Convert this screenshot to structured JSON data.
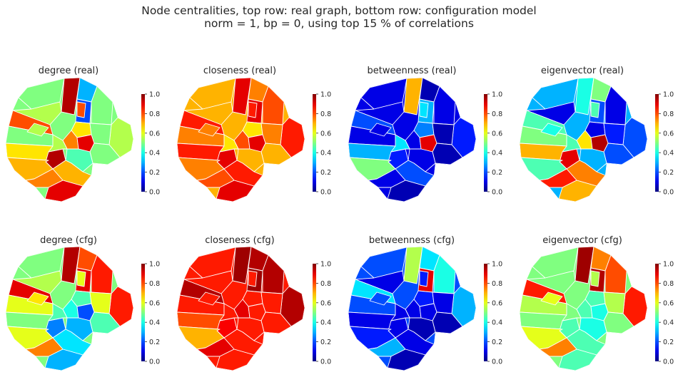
{
  "figure": {
    "title_line1": "Node centralities,   top row: real graph,   bottom row: configuration model",
    "title_line2": "norm = 1,   bp = 0,   using top 15 % of correlations"
  },
  "colors": {
    "background": "#ffffff",
    "text": "#262626",
    "region_border": "#ffffff",
    "colormap": "jet"
  },
  "chart_data": [
    {
      "type": "heatmap",
      "row": "real",
      "title": "degree (real)",
      "measure": "degree",
      "colorbar": {
        "range": [
          0,
          1
        ],
        "ticks": [
          "0.0",
          "0.2",
          "0.4",
          "0.6",
          "0.8",
          "1.0"
        ]
      },
      "region_values": [
        0.5,
        0.95,
        0.3,
        0.2,
        0.5,
        0.55,
        0.55,
        0.8,
        0.65,
        0.5,
        0.5,
        0.65,
        0.75,
        0.9,
        0.5,
        0.95,
        0.7,
        0.55,
        0.45,
        0.7,
        0.75,
        0.9,
        0.55,
        0.8
      ]
    },
    {
      "type": "heatmap",
      "row": "real",
      "title": "closeness (real)",
      "measure": "closeness",
      "colorbar": {
        "range": [
          0,
          1
        ],
        "ticks": [
          "0.0",
          "0.2",
          "0.4",
          "0.6",
          "0.8",
          "1.0"
        ]
      },
      "region_values": [
        0.7,
        0.9,
        0.75,
        0.9,
        0.8,
        0.85,
        0.7,
        0.85,
        0.65,
        0.75,
        0.75,
        0.85,
        0.8,
        0.9,
        0.7,
        0.9,
        0.75,
        0.65,
        0.7,
        0.85,
        0.8,
        0.9,
        0.75,
        0.85
      ]
    },
    {
      "type": "heatmap",
      "row": "real",
      "title": "betweenness (real)",
      "measure": "betweenness",
      "colorbar": {
        "range": [
          0,
          1
        ],
        "ticks": [
          "0.0",
          "0.2",
          "0.4",
          "0.6",
          "0.8",
          "1.0"
        ]
      },
      "region_values": [
        0.1,
        0.7,
        0.05,
        0.3,
        0.1,
        0.15,
        0.1,
        0.2,
        0.25,
        0.05,
        0.1,
        0.3,
        0.1,
        0.9,
        0.05,
        0.15,
        0.5,
        0.35,
        0.1,
        0.2,
        0.1,
        0.05,
        0.1,
        0.35
      ]
    },
    {
      "type": "heatmap",
      "row": "real",
      "title": "eigenvector (real)",
      "measure": "eigenvector",
      "colorbar": {
        "range": [
          0,
          1
        ],
        "ticks": [
          "0.0",
          "0.2",
          "0.4",
          "0.6",
          "0.8",
          "1.0"
        ]
      },
      "region_values": [
        0.3,
        0.4,
        0.5,
        0.2,
        0.1,
        0.2,
        0.1,
        0.45,
        0.1,
        0.15,
        0.5,
        0.7,
        0.65,
        0.95,
        0.2,
        0.9,
        0.45,
        0.45,
        0.3,
        0.75,
        0.85,
        0.7,
        0.4,
        0.45
      ]
    },
    {
      "type": "heatmap",
      "row": "cfg",
      "title": "degree (cfg)",
      "measure": "degree",
      "colorbar": {
        "range": [
          0,
          1
        ],
        "ticks": [
          "0.0",
          "0.2",
          "0.4",
          "0.6",
          "0.8",
          "1.0"
        ]
      },
      "region_values": [
        0.5,
        0.95,
        0.8,
        0.9,
        0.85,
        0.85,
        0.55,
        0.9,
        0.45,
        0.6,
        0.6,
        0.5,
        0.4,
        0.2,
        0.45,
        0.25,
        0.6,
        0.45,
        0.3,
        0.35,
        0.75,
        0.3,
        0.65,
        0.6
      ]
    },
    {
      "type": "heatmap",
      "row": "cfg",
      "title": "closeness (cfg)",
      "measure": "closeness",
      "colorbar": {
        "range": [
          0,
          1
        ],
        "ticks": [
          "0.0",
          "0.2",
          "0.4",
          "0.6",
          "0.8",
          "1.0"
        ]
      },
      "region_values": [
        0.85,
        0.97,
        0.95,
        0.97,
        0.95,
        0.95,
        0.85,
        0.95,
        0.85,
        0.85,
        0.85,
        0.8,
        0.9,
        0.85,
        0.85,
        0.88,
        0.7,
        0.85,
        0.85,
        0.85,
        0.9,
        0.85,
        0.85,
        0.85
      ]
    },
    {
      "type": "heatmap",
      "row": "cfg",
      "title": "betweenness (cfg)",
      "measure": "betweenness",
      "colorbar": {
        "range": [
          0,
          1
        ],
        "ticks": [
          "0.0",
          "0.2",
          "0.4",
          "0.6",
          "0.8",
          "1.0"
        ]
      },
      "region_values": [
        0.2,
        0.55,
        0.35,
        0.9,
        0.4,
        0.3,
        0.1,
        0.35,
        0.15,
        0.1,
        0.2,
        0.1,
        0.1,
        0.1,
        0.05,
        0.1,
        0.15,
        0.1,
        0.05,
        0.1,
        0.3,
        0.05,
        0.2,
        0.15
      ]
    },
    {
      "type": "heatmap",
      "row": "cfg",
      "title": "eigenvector (cfg)",
      "measure": "eigenvector",
      "colorbar": {
        "range": [
          0,
          1
        ],
        "ticks": [
          "0.0",
          "0.2",
          "0.4",
          "0.6",
          "0.8",
          "1.0"
        ]
      },
      "region_values": [
        0.5,
        0.97,
        0.75,
        0.95,
        0.8,
        0.85,
        0.5,
        0.85,
        0.45,
        0.55,
        0.55,
        0.5,
        0.45,
        0.4,
        0.5,
        0.45,
        0.6,
        0.5,
        0.4,
        0.45,
        0.75,
        0.45,
        0.6,
        0.55
      ]
    }
  ]
}
